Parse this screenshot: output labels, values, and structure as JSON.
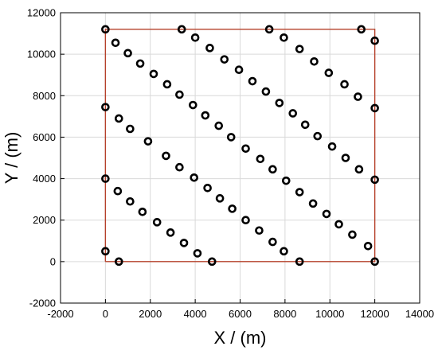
{
  "chart_data": {
    "type": "scatter",
    "title": "",
    "xlabel": "X / (m)",
    "ylabel": "Y / (m)",
    "xlim": [
      -2000,
      14000
    ],
    "ylim": [
      -2000,
      12000
    ],
    "xticks": [
      -2000,
      0,
      2000,
      4000,
      6000,
      8000,
      10000,
      12000,
      14000
    ],
    "yticks": [
      -2000,
      0,
      2000,
      4000,
      6000,
      8000,
      10000,
      12000
    ],
    "grid": true,
    "marker": "open-circle",
    "colors": {
      "points": "#000000",
      "boundary": "#b5402a",
      "grid": "#d9d9d9",
      "axes": "#000000"
    },
    "boundary": [
      [
        0,
        0
      ],
      [
        12000,
        0
      ],
      [
        12000,
        11200
      ],
      [
        0,
        11200
      ],
      [
        0,
        0
      ]
    ],
    "points": [
      [
        0,
        11200
      ],
      [
        3400,
        11200
      ],
      [
        7300,
        11200
      ],
      [
        11400,
        11200
      ],
      [
        450,
        10550
      ],
      [
        1000,
        10050
      ],
      [
        1550,
        9550
      ],
      [
        2150,
        9050
      ],
      [
        2750,
        8550
      ],
      [
        3300,
        8050
      ],
      [
        3900,
        7550
      ],
      [
        4450,
        7050
      ],
      [
        5050,
        6550
      ],
      [
        5600,
        6000
      ],
      [
        6250,
        5450
      ],
      [
        6900,
        4950
      ],
      [
        7450,
        4450
      ],
      [
        8050,
        3900
      ],
      [
        8650,
        3350
      ],
      [
        9250,
        2800
      ],
      [
        9850,
        2300
      ],
      [
        10400,
        1800
      ],
      [
        11000,
        1300
      ],
      [
        11700,
        750
      ],
      [
        12000,
        0
      ],
      [
        4000,
        10800
      ],
      [
        4650,
        10300
      ],
      [
        5300,
        9750
      ],
      [
        5950,
        9250
      ],
      [
        6550,
        8700
      ],
      [
        7150,
        8200
      ],
      [
        7750,
        7650
      ],
      [
        8350,
        7150
      ],
      [
        8900,
        6600
      ],
      [
        9450,
        6050
      ],
      [
        10100,
        5550
      ],
      [
        10700,
        5000
      ],
      [
        11300,
        4450
      ],
      [
        12000,
        3950
      ],
      [
        7950,
        10800
      ],
      [
        8650,
        10250
      ],
      [
        9300,
        9650
      ],
      [
        9950,
        9100
      ],
      [
        10650,
        8550
      ],
      [
        11250,
        7950
      ],
      [
        12000,
        7400
      ],
      [
        12000,
        10650
      ],
      [
        0,
        7450
      ],
      [
        600,
        6900
      ],
      [
        1100,
        6400
      ],
      [
        1900,
        5800
      ],
      [
        2700,
        5100
      ],
      [
        3300,
        4550
      ],
      [
        3950,
        4050
      ],
      [
        4550,
        3550
      ],
      [
        5100,
        3050
      ],
      [
        5650,
        2550
      ],
      [
        6250,
        2000
      ],
      [
        6850,
        1500
      ],
      [
        7450,
        950
      ],
      [
        7950,
        500
      ],
      [
        8650,
        0
      ],
      [
        0,
        4000
      ],
      [
        550,
        3400
      ],
      [
        1100,
        2900
      ],
      [
        1650,
        2400
      ],
      [
        2300,
        1900
      ],
      [
        2900,
        1400
      ],
      [
        3500,
        900
      ],
      [
        4100,
        400
      ],
      [
        4750,
        0
      ],
      [
        0,
        500
      ],
      [
        600,
        0
      ]
    ]
  }
}
